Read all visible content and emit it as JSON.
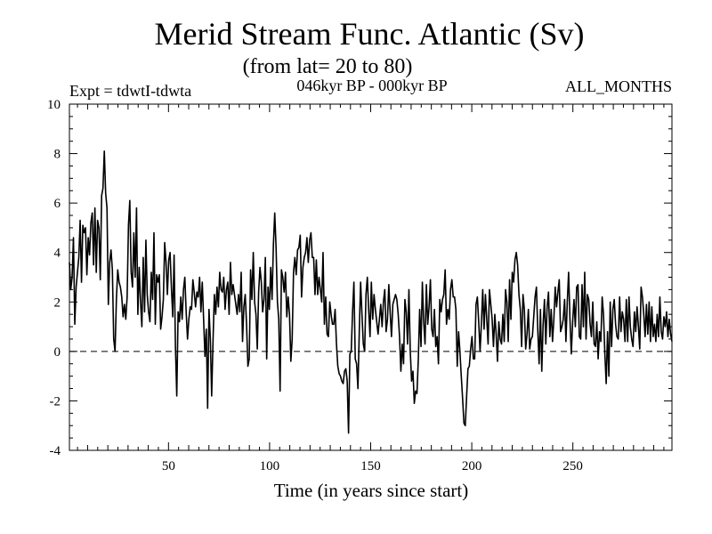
{
  "chart_data": {
    "type": "line",
    "title": "Merid Stream Func. Atlantic (Sv)",
    "subtitle": "(from lat= 20 to 80)",
    "expt_label": "Expt = tdwtI-tdwta",
    "period_label": "046kyr BP - 000kyr BP",
    "months_label": "ALL_MONTHS",
    "xlabel": "Time (in years since start)",
    "ylabel": "",
    "xlim": [
      1,
      299
    ],
    "ylim": [
      -4,
      10
    ],
    "x_ticks": [
      50,
      100,
      150,
      200,
      250
    ],
    "y_ticks": [
      -4,
      -2,
      0,
      2,
      4,
      6,
      8,
      10
    ],
    "zero_line": "dashed",
    "series": [
      {
        "values": [
          3.6,
          2.5,
          3.0,
          4.6,
          1.1,
          2.6,
          3.2,
          3.8,
          5.3,
          2.8,
          5.1,
          4.8,
          5.0,
          3.1,
          4.6,
          3.9,
          5.2,
          5.6,
          3.5,
          5.8,
          3.2,
          5.3,
          5.0,
          2.9,
          6.3,
          6.6,
          8.1,
          6.4,
          5.8,
          1.9,
          3.6,
          4.1,
          3.3,
          0.5,
          0.0,
          2.1,
          3.3,
          2.8,
          2.6,
          2.2,
          1.4,
          1.9,
          1.3,
          2.2,
          5.1,
          6.1,
          3.2,
          2.6,
          4.8,
          3.0,
          5.8,
          1.5,
          3.4,
          2.0,
          1.0,
          3.8,
          1.6,
          4.5,
          2.3,
          1.6,
          1.2,
          3.2,
          2.1,
          4.8,
          1.1,
          3.1,
          2.8,
          3.1,
          0.9,
          1.4,
          2.1,
          4.4,
          3.6,
          2.3,
          3.7,
          4.0,
          2.6,
          1.4,
          3.9,
          0.2,
          -1.8,
          1.6,
          1.2,
          2.2,
          1.3,
          2.5,
          3.0,
          1.6,
          0.5,
          1.3,
          1.8,
          1.7,
          2.9,
          2.4,
          1.8,
          2.4,
          2.2,
          3.0,
          1.6,
          2.8,
          1.3,
          -0.2,
          0.9,
          -2.3,
          1.7,
          0.5,
          -1.8,
          0.4,
          2.3,
          1.5,
          2.6,
          1.8,
          3.2,
          2.5,
          2.4,
          3.0,
          1.7,
          2.5,
          2.8,
          1.5,
          3.6,
          2.3,
          2.7,
          2.3,
          1.9,
          1.5,
          2.3,
          1.6,
          3.2,
          0.4,
          1.8,
          2.3,
          1.1,
          -0.6,
          -0.3,
          3.3,
          2.1,
          4.0,
          2.0,
          1.5,
          0.1,
          2.4,
          3.4,
          2.8,
          1.6,
          2.1,
          3.8,
          -0.3,
          2.6,
          1.7,
          3.4,
          2.1,
          4.3,
          5.6,
          4.2,
          2.0,
          1.3,
          -1.6,
          3.3,
          3.0,
          2.4,
          3.2,
          1.4,
          2.2,
          1.5,
          -0.4,
          0.5,
          3.2,
          3.8,
          3.1,
          4.1,
          4.2,
          4.7,
          2.2,
          3.4,
          3.8,
          4.0,
          4.6,
          3.6,
          4.5,
          4.8,
          3.8,
          3.8,
          2.3,
          3.7,
          2.3,
          3.0,
          2.5,
          2.0,
          4.0,
          1.1,
          2.2,
          0.7,
          0.6,
          2.0,
          1.5,
          1.1,
          1.1,
          1.7,
          0.3,
          -0.6,
          -0.9,
          -1.0,
          -1.2,
          -1.3,
          -0.8,
          -0.7,
          -1.2,
          -3.3,
          -0.1,
          0.0,
          1.6,
          2.8,
          -0.3,
          -0.5,
          -1.5,
          0.8,
          2.8,
          1.5,
          0.3,
          0.0,
          2.3,
          3.0,
          1.7,
          0.6,
          2.8,
          1.3,
          2.3,
          1.7,
          1.2,
          0.7,
          1.3,
          1.9,
          1.0,
          2.0,
          2.5,
          0.8,
          1.3,
          2.7,
          1.6,
          0.6,
          1.9,
          2.1,
          2.3,
          2.1,
          1.5,
          0.6,
          -0.8,
          0.3,
          -0.5,
          2.1,
          1.6,
          0.3,
          2.5,
          0.0,
          -1.2,
          -0.8,
          -2.1,
          -1.6,
          -1.7,
          -0.3,
          1.7,
          0.2,
          2.8,
          1.2,
          0.3,
          2.7,
          1.1,
          1.8,
          2.9,
          0.9,
          0.6,
          1.7,
          0.2,
          0.6,
          -0.5,
          2.1,
          1.6,
          2.1,
          2.3,
          3.3,
          1.1,
          1.7,
          1.3,
          2.5,
          2.9,
          2.2,
          2.2,
          1.7,
          -0.6,
          0.8,
          0.0,
          -1.0,
          -1.9,
          -2.9,
          -3.0,
          -1.8,
          -0.7,
          -0.6,
          0.1,
          0.6,
          -0.3,
          -0.3,
          1.9,
          2.2,
          1.2,
          0.0,
          1.1,
          2.5,
          0.9,
          2.3,
          1.3,
          0.3,
          2.5,
          1.9,
          1.3,
          0.2,
          1.5,
          0.7,
          -0.4,
          1.2,
          0.5,
          0.3,
          1.5,
          0.4,
          2.5,
          2.0,
          0.4,
          2.9,
          1.3,
          3.2,
          2.8,
          3.7,
          4.0,
          3.5,
          2.3,
          1.7,
          0.2,
          2.3,
          1.7,
          0.1,
          0.7,
          1.7,
          0.1,
          0.5,
          0.6,
          1.4,
          2.2,
          2.6,
          0.9,
          -0.5,
          1.7,
          -0.8,
          1.1,
          2.1,
          0.3,
          1.8,
          2.4,
          0.6,
          1.7,
          0.4,
          1.3,
          2.6,
          1.8,
          2.4,
          2.9,
          0.8,
          1.0,
          1.3,
          2.1,
          0.4,
          2.0,
          3.2,
          1.3,
          -0.1,
          1.2,
          2.1,
          1.0,
          2.6,
          2.7,
          0.6,
          0.5,
          2.7,
          1.0,
          3.2,
          0.5,
          2.3,
          2.1,
          1.1,
          0.6,
          2.0,
          0.3,
          0.2,
          1.2,
          -0.3,
          0.8,
          0.4,
          2.2,
          1.5,
          -0.1,
          -1.3,
          0.8,
          -1.0,
          2.0,
          0.2,
          1.7,
          2.1,
          1.1,
          0.6,
          0.5,
          2.2,
          0.8,
          1.6,
          1.3,
          0.4,
          2.1,
          0.4,
          2.2,
          1.0,
          0.5,
          0.2,
          1.6,
          0.8,
          1.8,
          1.0,
          0.1,
          2.6,
          2.2,
          1.5,
          0.6,
          1.9,
          0.7,
          2.0,
          0.4,
          1.8,
          0.6,
          1.1,
          0.4,
          1.5,
          0.6,
          2.2,
          0.8,
          0.5,
          1.4,
          1.0,
          1.6,
          0.6,
          1.3,
          0.7,
          0.4
        ]
      }
    ]
  }
}
